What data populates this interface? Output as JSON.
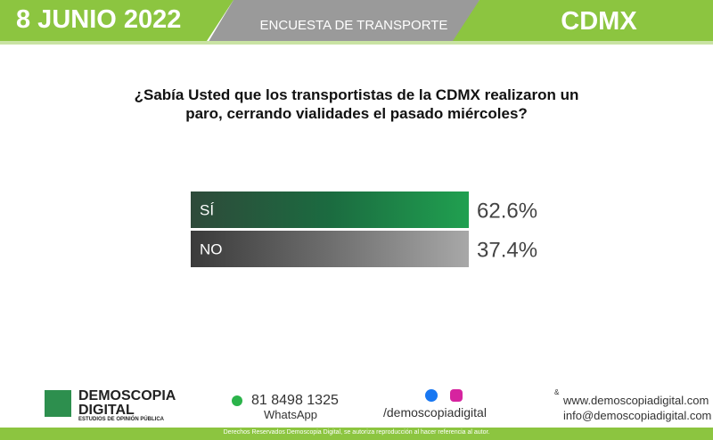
{
  "header": {
    "date": "8 JUNIO 2022",
    "survey": "ENCUESTA DE TRANSPORTE",
    "region": "CDMX"
  },
  "chart_data": {
    "type": "bar",
    "orientation": "horizontal",
    "title": "¿Sabía Usted que los transportistas de la CDMX realizaron un paro, cerrando vialidades el pasado miércoles?",
    "categories": [
      "SÍ",
      "NO"
    ],
    "values": [
      62.6,
      37.4
    ],
    "value_labels": [
      "62.6%",
      "37.4%"
    ],
    "colors": [
      "#1e8a4c",
      "#9c9c9c"
    ]
  },
  "footer": {
    "brand": "DEMOSCOPIA",
    "brand2": "DIGITAL",
    "tagline": "ESTUDIOS DE OPINIÓN PÚBLICA",
    "phone": "81 8498 1325",
    "phone_label": "WhatsApp",
    "social": "/demoscopiadigital",
    "amp": "&",
    "web": "www.demoscopiadigital.com",
    "email": "info@demoscopiadigital.com",
    "rights": "Derechos Reservados Demoscopia Digital, se autoriza reproducción al hacer referencia al autor."
  }
}
